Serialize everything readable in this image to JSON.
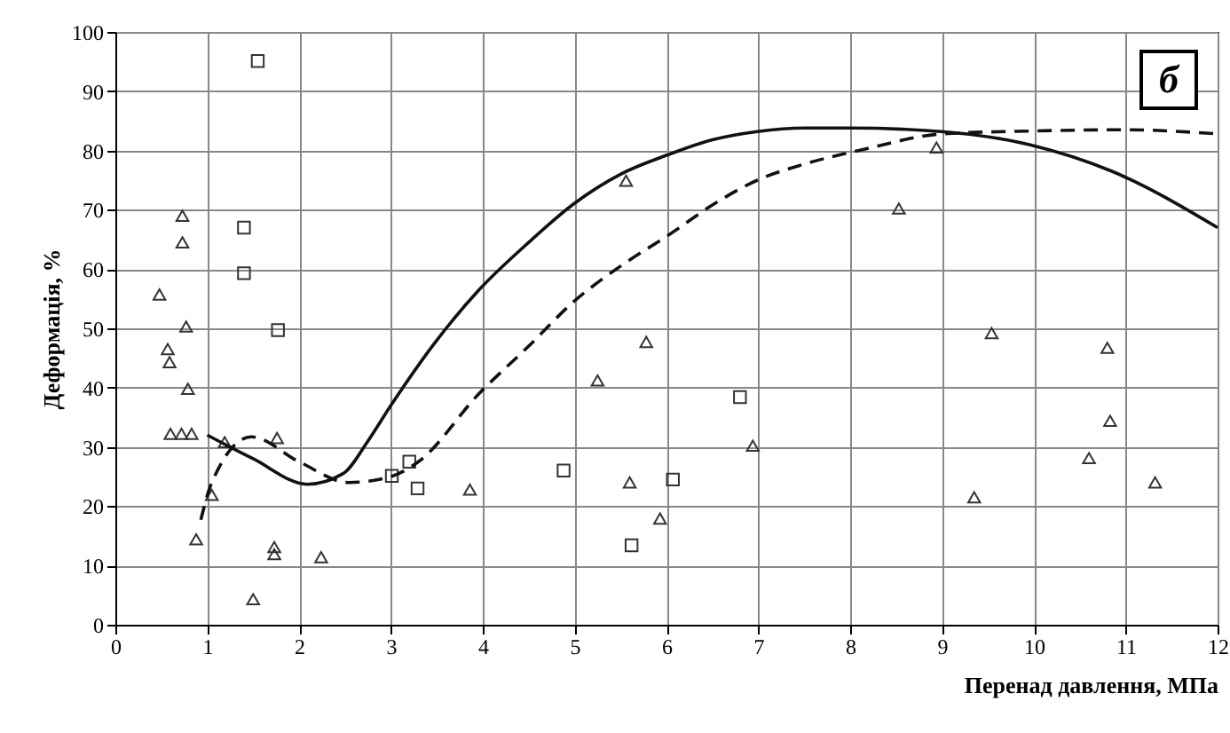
{
  "chart_data": {
    "type": "scatter",
    "xlabel": "Перенад давлення, МПа",
    "ylabel": "Деформація, %",
    "annotations": [
      "б"
    ],
    "xlim": [
      0,
      12
    ],
    "xticks": [
      0,
      1,
      2,
      3,
      4,
      5,
      6,
      7,
      8,
      9,
      10,
      11,
      12
    ],
    "ylim": [
      0,
      100
    ],
    "yticks": [
      0,
      10,
      20,
      30,
      40,
      50,
      60,
      70,
      80,
      90,
      100
    ],
    "grid": true,
    "series": [
      {
        "type": "scatter",
        "marker": "triangle",
        "color": "#333333",
        "x": [
          0.73,
          0.73,
          0.48,
          0.77,
          0.57,
          0.59,
          0.79,
          0.6,
          0.72,
          0.83,
          1.19,
          1.76,
          1.05,
          0.88,
          1.73,
          1.73,
          2.24,
          1.5,
          3.86,
          5.56,
          5.78,
          5.25,
          6.94,
          5.6,
          5.93,
          8.94,
          8.53,
          9.54,
          10.8,
          10.83,
          10.6,
          11.32,
          9.35
        ],
        "values": [
          69,
          64.5,
          55.7,
          50.3,
          46.5,
          44.3,
          39.8,
          32.2,
          32.2,
          32.2,
          30.8,
          31.5,
          21.9,
          14.4,
          13.1,
          11.9,
          11.4,
          4.3,
          22.8,
          74.9,
          47.7,
          41.2,
          30.2,
          24,
          17.9,
          80.5,
          70.2,
          49.2,
          46.7,
          34.4,
          28.1,
          24,
          21.5
        ]
      },
      {
        "type": "scatter",
        "marker": "square",
        "color": "#333333",
        "x": [
          1.55,
          1.4,
          1.4,
          1.77,
          3.01,
          3.2,
          3.29,
          6.8,
          4.88,
          6.07,
          5.62
        ],
        "values": [
          95.1,
          67,
          59.3,
          49.7,
          25.1,
          27.5,
          23,
          38.4,
          26,
          24.5,
          13.4
        ]
      },
      {
        "type": "line",
        "line_style": "solid",
        "color": "#111111",
        "x": [
          1,
          1.5,
          2.09,
          2.48,
          2.75,
          3,
          3.5,
          3.96,
          4.5,
          4.99,
          5.5,
          6.02,
          6.5,
          6.99,
          7.5,
          8,
          8.99,
          9.95,
          10.85,
          12
        ],
        "values": [
          32,
          28,
          23.7,
          25.5,
          31,
          37,
          48,
          56.5,
          64.5,
          71,
          76,
          79.3,
          81.8,
          83.2,
          83.8,
          83.8,
          83.2,
          81,
          76.5,
          67
        ]
      },
      {
        "type": "line",
        "line_style": "dashed",
        "color": "#111111",
        "x": [
          0.93,
          1.05,
          1.48,
          2,
          2.54,
          3,
          3.3,
          3.96,
          4.5,
          4.99,
          5.5,
          6.02,
          6.5,
          6.99,
          7.5,
          8.15,
          9,
          10,
          11,
          12
        ],
        "values": [
          17.7,
          24,
          31.7,
          27.5,
          24,
          25,
          27.5,
          39,
          47,
          54.5,
          60.5,
          65.7,
          70.8,
          75,
          77.7,
          80.2,
          82.8,
          83.3,
          83.5,
          82.8
        ]
      }
    ]
  }
}
